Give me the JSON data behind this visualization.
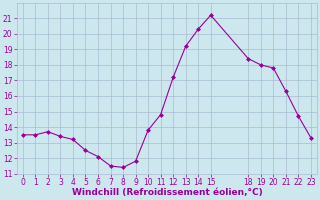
{
  "x": [
    0,
    1,
    2,
    3,
    4,
    5,
    6,
    7,
    8,
    9,
    10,
    11,
    12,
    13,
    14,
    15,
    18,
    19,
    20,
    21,
    22,
    23
  ],
  "y": [
    13.5,
    13.5,
    13.7,
    13.4,
    13.2,
    12.5,
    12.1,
    11.5,
    11.4,
    11.8,
    13.8,
    14.8,
    17.2,
    19.2,
    20.3,
    21.2,
    18.4,
    18.0,
    17.8,
    16.3,
    14.7,
    13.3
  ],
  "line_color": "#990099",
  "marker": "D",
  "marker_size": 2,
  "bg_color": "#cce8ee",
  "grid_color": "#aabbd0",
  "xlabel": "Windchill (Refroidissement éolien,°C)",
  "xlabel_color": "#990099",
  "tick_color": "#990099",
  "ylim": [
    11,
    22
  ],
  "xlim": [
    -0.5,
    23.5
  ],
  "yticks": [
    11,
    12,
    13,
    14,
    15,
    16,
    17,
    18,
    19,
    20,
    21
  ],
  "xticks": [
    0,
    1,
    2,
    3,
    4,
    5,
    6,
    7,
    8,
    9,
    10,
    11,
    12,
    13,
    14,
    15,
    18,
    19,
    20,
    21,
    22,
    23
  ],
  "tick_fontsize": 5.5,
  "ylabel_fontsize": 6,
  "xlabel_fontsize": 6.5
}
